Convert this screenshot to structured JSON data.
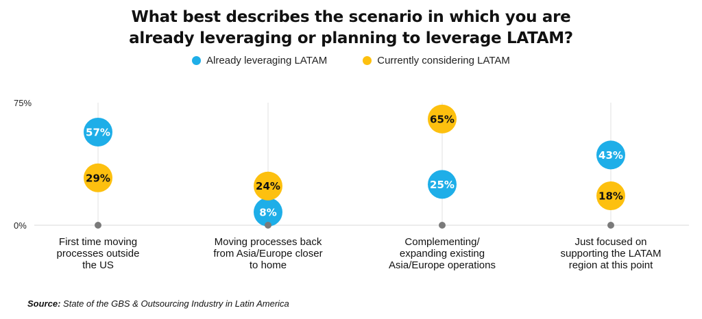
{
  "chart_data": {
    "type": "scatter",
    "title_lines": [
      "What best describes the scenario in which you are",
      "already leveraging or planning to leverage LATAM?"
    ],
    "ylim": [
      0,
      75
    ],
    "yticks": [
      {
        "value": 75,
        "label": "75%"
      },
      {
        "value": 0,
        "label": "0%"
      }
    ],
    "categories": [
      [
        "First time moving",
        "processes outside",
        "the US"
      ],
      [
        "Moving processes back",
        "from Asia/Europe closer",
        "to home"
      ],
      [
        "Complementing/",
        "expanding existing",
        "Asia/Europe operations"
      ],
      [
        "Just focused on",
        "supporting the LATAM",
        "region at this point"
      ]
    ],
    "series": [
      {
        "name": "Already leveraging LATAM",
        "color": "#1eaee8",
        "values": [
          57,
          8,
          25,
          43
        ],
        "labels": [
          "57%",
          "8%",
          "25%",
          "43%"
        ]
      },
      {
        "name": "Currently considering LATAM",
        "color": "#fdc00f",
        "values": [
          29,
          24,
          65,
          18
        ],
        "labels": [
          "29%",
          "24%",
          "65%",
          "18%"
        ]
      }
    ],
    "legend": "top-center",
    "grid": "vertical"
  },
  "source": {
    "label": "Source:",
    "text": "State of the GBS & Outsourcing Industry in Latin America"
  }
}
